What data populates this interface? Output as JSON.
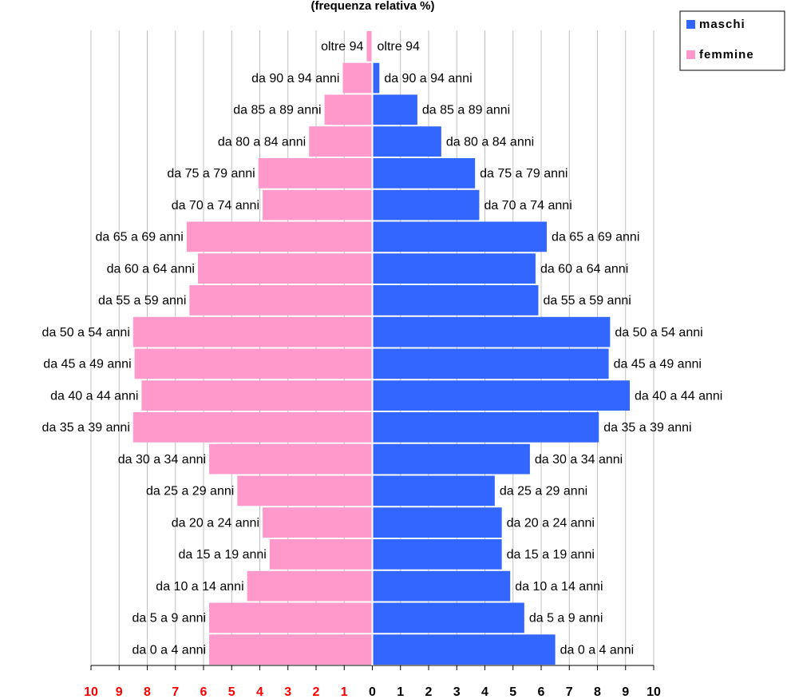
{
  "chart_data": {
    "type": "pyramid",
    "title": "(frequenza relativa %)",
    "categories": [
      "oltre 94",
      "da 90 a 94 anni",
      "da 85 a 89 anni",
      "da 80 a 84 anni",
      "da 75 a 79 anni",
      "da 70 a 74 anni",
      "da 65 a 69 anni",
      "da 60 a 64 anni",
      "da 55 a 59 anni",
      "da 50 a 54 anni",
      "da 45 a 49 anni",
      "da 40 a 44 anni",
      "da 35 a 39 anni",
      "da 30 a 34 anni",
      "da 25 a 29 anni",
      "da 20 a 24 anni",
      "da 15 a 19 anni",
      "da 10 a 14 anni",
      "da 5 a 9 anni",
      "da 0 a 4 anni"
    ],
    "series": [
      {
        "name": "maschi",
        "color": "#3366ff",
        "side": "right",
        "values": [
          0,
          0.25,
          1.6,
          2.45,
          3.65,
          3.8,
          6.2,
          5.8,
          5.9,
          8.45,
          8.4,
          9.15,
          8.05,
          5.6,
          4.35,
          4.6,
          4.6,
          4.9,
          5.4,
          6.5
        ]
      },
      {
        "name": "femmine",
        "color": "#ff99cc",
        "side": "left",
        "values": [
          0.2,
          1.05,
          1.7,
          2.25,
          4.05,
          3.9,
          6.6,
          6.2,
          6.5,
          8.5,
          8.45,
          8.2,
          8.5,
          5.8,
          4.8,
          3.9,
          3.65,
          4.45,
          5.8,
          5.8
        ]
      }
    ],
    "xlim": [
      -10,
      10
    ],
    "xticks": [
      {
        "value": -10,
        "label": "10"
      },
      {
        "value": -9,
        "label": "9"
      },
      {
        "value": -8,
        "label": "8"
      },
      {
        "value": -7,
        "label": "7"
      },
      {
        "value": -6,
        "label": "6"
      },
      {
        "value": -5,
        "label": "5"
      },
      {
        "value": -4,
        "label": "4"
      },
      {
        "value": -3,
        "label": "3"
      },
      {
        "value": -2,
        "label": "2"
      },
      {
        "value": -1,
        "label": "1"
      },
      0,
      1,
      2,
      3,
      4,
      5,
      6,
      7,
      8,
      9,
      10
    ],
    "left_tick_color": "#ff0000",
    "grid": true,
    "legend": "top-right"
  }
}
